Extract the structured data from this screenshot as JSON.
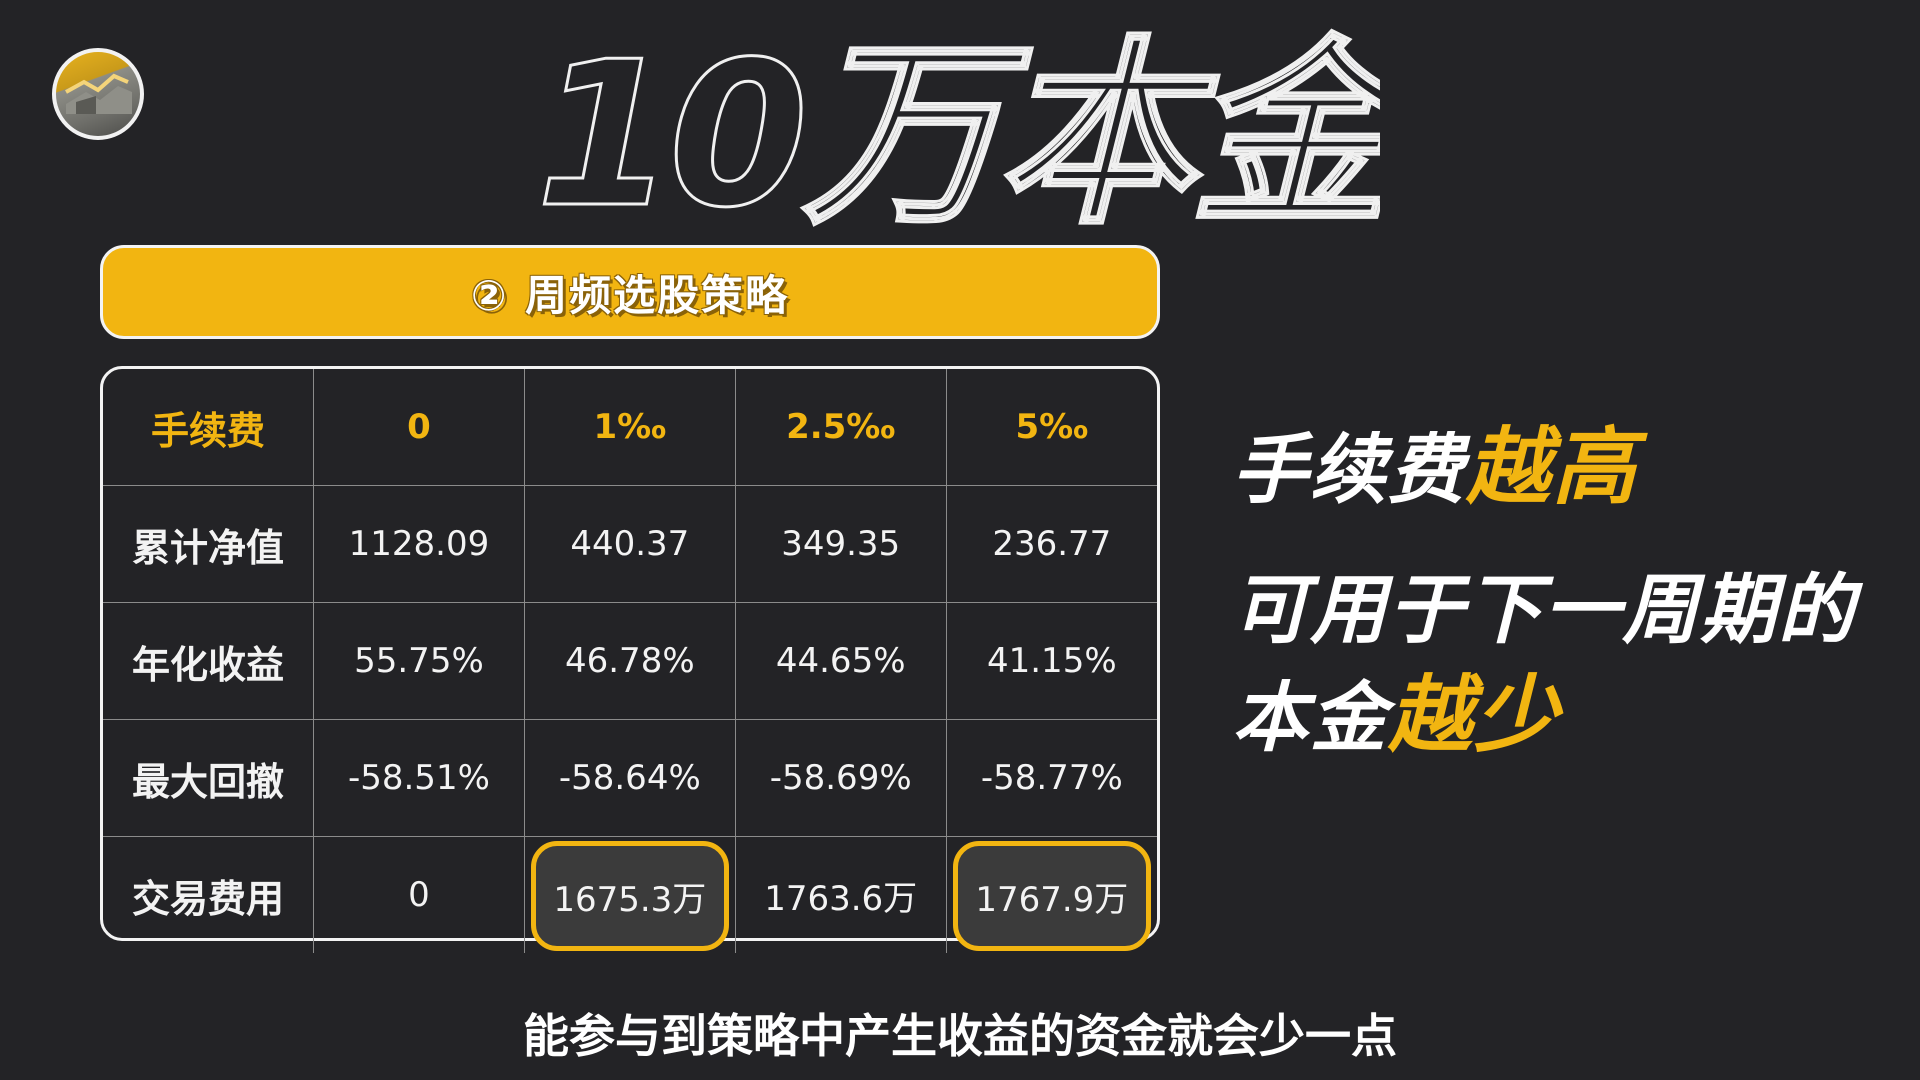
{
  "title": "10万本金",
  "banner": {
    "text": "② 周频选股策略"
  },
  "table": {
    "header": [
      "手续费",
      "0",
      "1‰",
      "2.5‰",
      "5‰"
    ],
    "rows": [
      {
        "label": "累计净值",
        "values": [
          "1128.09",
          "440.37",
          "349.35",
          "236.77"
        ]
      },
      {
        "label": "年化收益",
        "values": [
          "55.75%",
          "46.78%",
          "44.65%",
          "41.15%"
        ]
      },
      {
        "label": "最大回撤",
        "values": [
          "-58.51%",
          "-58.64%",
          "-58.69%",
          "-58.77%"
        ]
      },
      {
        "label": "交易费用",
        "values": [
          "0",
          "1675.3万",
          "1763.6万",
          "1767.9万"
        ],
        "highlighted": [
          1,
          3
        ]
      }
    ]
  },
  "side_text": {
    "line1_plain": "手续费",
    "line1_accent": "越高",
    "line2": "可用于下一周期的",
    "line3_plain": "本金",
    "line3_accent": "越少"
  },
  "caption": "能参与到策略中产生收益的资金就会少一点",
  "colors": {
    "background": "#232326",
    "accent": "#f2b511",
    "text": "#ffffff"
  },
  "icons": {
    "logo": "channel-logo-icon"
  }
}
